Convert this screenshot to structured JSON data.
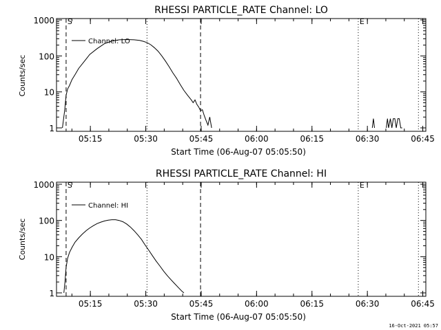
{
  "chart_data": [
    {
      "type": "line",
      "title": "RHESSI PARTICLE_RATE Channel: LO",
      "xlabel": "Start Time (06-Aug-07 05:05:50)",
      "ylabel": "Counts/sec",
      "yscale": "log",
      "ylim": [
        1,
        1000
      ],
      "yticks": [
        1,
        10,
        100,
        1000
      ],
      "ytick_labels": [
        "1",
        "10",
        "100",
        "1000"
      ],
      "xlim_minutes": [
        0,
        100
      ],
      "xticks_minutes": [
        9.17,
        24.17,
        39.17,
        54.17,
        69.17,
        84.17,
        99.17
      ],
      "xtick_labels": [
        "05:15",
        "05:30",
        "05:45",
        "06:00",
        "06:15",
        "06:30",
        "06:45"
      ],
      "legend": "Channel: LO",
      "markers": [
        {
          "label": "S",
          "minutes": 2.6,
          "style": "dashed"
        },
        {
          "label": "",
          "minutes": 24.5,
          "style": "dotted"
        },
        {
          "label": "",
          "minutes": 39.0,
          "style": "dashed"
        },
        {
          "label": "E",
          "minutes": 81.7,
          "style": "dotted"
        },
        {
          "label": "",
          "minutes": 98.0,
          "style": "dotted"
        }
      ],
      "series": [
        {
          "name": "LO",
          "segments": [
            {
              "x": [
                1.6,
                2.2,
                2.6,
                3.0,
                3.5,
                4.2,
                5.0,
                6.0,
                7.5,
                9.0,
                11.0,
                13.0,
                15.0,
                17.0,
                19.0,
                21.0,
                22.5,
                23.5,
                24.5,
                25.5,
                26.5,
                27.5,
                28.5,
                29.5,
                30.5,
                31.5,
                32.5,
                33.5,
                34.5,
                35.5,
                36.5,
                37.0,
                37.5,
                38.0,
                38.5,
                39.0,
                39.5,
                40.0,
                40.5,
                41.0,
                41.5,
                42.0
              ],
              "y": [
                1.0,
                3.0,
                8.0,
                12,
                15,
                22,
                30,
                45,
                70,
                110,
                160,
                220,
                260,
                280,
                285,
                280,
                270,
                255,
                235,
                205,
                170,
                135,
                100,
                72,
                50,
                34,
                24,
                16,
                11,
                8,
                6,
                5,
                6,
                4.5,
                3.8,
                3.0,
                3.2,
                2.2,
                1.6,
                1.2,
                2.0,
                1.0
              ]
            },
            {
              "x": [
                85.5,
                85.8,
                86.1
              ],
              "y": [
                1.0,
                1.8,
                1.0
              ]
            },
            {
              "x": [
                89.3,
                89.6,
                89.9,
                90.4,
                90.8,
                91.2,
                91.6,
                92.0,
                92.4,
                92.8,
                93.2,
                93.6
              ],
              "y": [
                1.0,
                1.8,
                1.0,
                1.8,
                1.0,
                1.8,
                1.8,
                1.0,
                1.8,
                1.8,
                1.0,
                1.0
              ]
            }
          ]
        }
      ]
    },
    {
      "type": "line",
      "title": "RHESSI PARTICLE_RATE Channel: HI",
      "xlabel": "Start Time (06-Aug-07 05:05:50)",
      "ylabel": "Counts/sec",
      "yscale": "log",
      "ylim": [
        1,
        1000
      ],
      "yticks": [
        1,
        10,
        100,
        1000
      ],
      "ytick_labels": [
        "1",
        "10",
        "100",
        "1000"
      ],
      "xlim_minutes": [
        0,
        100
      ],
      "xticks_minutes": [
        9.17,
        24.17,
        39.17,
        54.17,
        69.17,
        84.17,
        99.17
      ],
      "xtick_labels": [
        "05:15",
        "05:30",
        "05:45",
        "06:00",
        "06:15",
        "06:30",
        "06:45"
      ],
      "legend": "Channel: HI",
      "markers": [
        {
          "label": "S",
          "minutes": 2.6,
          "style": "dashed"
        },
        {
          "label": "",
          "minutes": 24.5,
          "style": "dotted"
        },
        {
          "label": "",
          "minutes": 39.0,
          "style": "dashed"
        },
        {
          "label": "E",
          "minutes": 81.7,
          "style": "dotted"
        },
        {
          "label": "",
          "minutes": 98.0,
          "style": "dotted"
        }
      ],
      "series": [
        {
          "name": "HI",
          "segments": [
            {
              "x": [
                2.0,
                2.3,
                2.6,
                3.0,
                3.5,
                4.2,
                5.0,
                6.0,
                7.0,
                8.0,
                9.0,
                10.0,
                11.0,
                12.0,
                13.0,
                14.0,
                15.0,
                16.0,
                17.0,
                18.0,
                19.0,
                20.0,
                21.0,
                22.0,
                23.0,
                24.0,
                25.0,
                26.0,
                27.0,
                28.0,
                29.0,
                30.0,
                31.0,
                32.0,
                33.0,
                34.0,
                34.5
              ],
              "y": [
                1.0,
                2.0,
                5.0,
                9,
                13,
                18,
                25,
                33,
                42,
                52,
                62,
                72,
                82,
                90,
                97,
                102,
                105,
                105,
                100,
                92,
                80,
                66,
                52,
                40,
                30,
                21,
                15,
                10.5,
                7.5,
                5.5,
                4.0,
                3.0,
                2.3,
                1.8,
                1.4,
                1.1,
                1.0
              ]
            }
          ]
        }
      ]
    }
  ],
  "footer": "16-Oct-2021 05:57"
}
